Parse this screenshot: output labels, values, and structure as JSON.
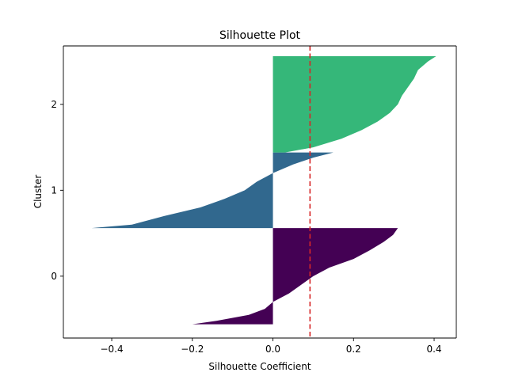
{
  "chart_data": {
    "type": "area",
    "title": "Silhouette Plot",
    "xlabel": "Silhouette Coefficient",
    "ylabel": "Cluster",
    "xlim": [
      -0.52,
      0.455
    ],
    "ylim": [
      -0.72,
      2.68
    ],
    "xticks": [
      -0.4,
      -0.2,
      0.0,
      0.2,
      0.4
    ],
    "xtick_labels": [
      "−0.4",
      "−0.2",
      "0.0",
      "0.2",
      "0.4"
    ],
    "yticks": [
      0,
      1,
      2
    ],
    "ytick_labels": [
      "0",
      "1",
      "2"
    ],
    "grid": false,
    "reference_line": {
      "x": 0.092,
      "color": "#d62728",
      "style": "dashed"
    },
    "clusters": [
      {
        "cluster": "0",
        "color": "#440154",
        "y_range": [
          -0.56,
          0.56
        ],
        "profile": [
          [
            -0.56,
            -0.2
          ],
          [
            -0.52,
            -0.14
          ],
          [
            -0.45,
            -0.06
          ],
          [
            -0.38,
            -0.02
          ],
          [
            -0.3,
            0.0
          ],
          [
            -0.2,
            0.04
          ],
          [
            -0.1,
            0.07
          ],
          [
            0.0,
            0.1
          ],
          [
            0.1,
            0.14
          ],
          [
            0.2,
            0.2
          ],
          [
            0.3,
            0.24
          ],
          [
            0.4,
            0.275
          ],
          [
            0.48,
            0.298
          ],
          [
            0.56,
            0.31
          ]
        ]
      },
      {
        "cluster": "1",
        "color": "#31688e",
        "y_range": [
          0.56,
          1.44
        ],
        "profile": [
          [
            0.56,
            -0.45
          ],
          [
            0.6,
            -0.35
          ],
          [
            0.7,
            -0.27
          ],
          [
            0.8,
            -0.18
          ],
          [
            0.9,
            -0.12
          ],
          [
            1.0,
            -0.07
          ],
          [
            1.1,
            -0.04
          ],
          [
            1.2,
            0.0
          ],
          [
            1.3,
            0.05
          ],
          [
            1.38,
            0.1
          ],
          [
            1.44,
            0.15
          ]
        ]
      },
      {
        "cluster": "2",
        "color": "#35b779",
        "y_range": [
          1.44,
          2.56
        ],
        "profile": [
          [
            1.44,
            0.03
          ],
          [
            1.5,
            0.1
          ],
          [
            1.6,
            0.17
          ],
          [
            1.7,
            0.22
          ],
          [
            1.8,
            0.26
          ],
          [
            1.9,
            0.29
          ],
          [
            2.0,
            0.31
          ],
          [
            2.1,
            0.32
          ],
          [
            2.2,
            0.335
          ],
          [
            2.3,
            0.35
          ],
          [
            2.4,
            0.36
          ],
          [
            2.5,
            0.385
          ],
          [
            2.56,
            0.405
          ]
        ]
      }
    ]
  }
}
